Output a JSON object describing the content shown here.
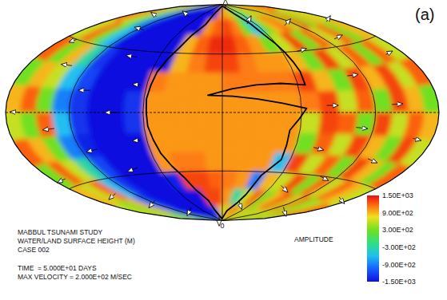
{
  "chart_data": {
    "type": "map",
    "panel_label": "(a)",
    "title": "MABBUL TSUNAMI STUDY",
    "subtitle": "WATER/LAND SURFACE HEIGHT (M)",
    "annotations": [
      "CASE 002",
      "TIME  = 5.000E+01 DAYS",
      "MAX VELOCITY = 2.000E+02 M/SEC"
    ],
    "vector_label": "AMPLITUDE",
    "xticks": [
      0
    ],
    "meridians": [
      -120,
      -60,
      0,
      60,
      120
    ],
    "parallels": [
      -45,
      0,
      45
    ],
    "lon": [
      -172.5,
      -157.5,
      -142.5,
      -127.5,
      -112.5,
      -97.5,
      -82.5,
      -67.5,
      -52.5,
      -37.5,
      -22.5,
      -7.5,
      7.5,
      22.5,
      37.5,
      52.5,
      67.5,
      82.5,
      97.5,
      112.5,
      127.5,
      142.5,
      157.5,
      172.5
    ],
    "lat": [
      82.5,
      67.5,
      52.5,
      37.5,
      22.5,
      7.5,
      -7.5,
      -22.5,
      -37.5,
      -52.5,
      -67.5,
      -82.5
    ],
    "cells": [
      [
        900,
        600,
        200,
        -1200,
        -1500,
        -1500,
        -1500,
        -1500,
        -1500,
        -1500,
        -1400,
        1000,
        1000,
        900,
        300,
        -300,
        200,
        600,
        900,
        300,
        600,
        1200,
        900,
        1200
      ],
      [
        1200,
        600,
        0,
        -900,
        -1500,
        -1500,
        -1500,
        -1500,
        -1500,
        -1500,
        1000,
        1200,
        1300,
        1100,
        300,
        -600,
        300,
        900,
        1200,
        600,
        1300,
        300,
        900,
        600
      ],
      [
        600,
        1200,
        300,
        -600,
        -1500,
        -1500,
        -1500,
        -1500,
        -1500,
        900,
        1200,
        1400,
        1400,
        1200,
        1000,
        300,
        600,
        1300,
        300,
        1200,
        600,
        1200,
        300,
        900
      ],
      [
        1200,
        300,
        900,
        -300,
        -1300,
        -1500,
        -1500,
        -1500,
        -1500,
        900,
        1100,
        1300,
        1300,
        1100,
        1000,
        1000,
        900,
        300,
        1300,
        600,
        1200,
        300,
        1200,
        600
      ],
      [
        300,
        900,
        600,
        -600,
        -1200,
        -1500,
        -1500,
        -1500,
        1100,
        1000,
        1000,
        1000,
        1100,
        1100,
        1100,
        1100,
        1300,
        900,
        300,
        1300,
        900,
        1300,
        600,
        1200
      ],
      [
        900,
        1200,
        300,
        -900,
        -1300,
        -1500,
        -1500,
        -1300,
        1000,
        1000,
        1000,
        1000,
        1000,
        1000,
        1000,
        1000,
        1100,
        1300,
        600,
        1200,
        300,
        1300,
        900,
        300
      ],
      [
        600,
        300,
        1200,
        -600,
        -1300,
        -1500,
        -1500,
        -1300,
        1000,
        1000,
        1000,
        1000,
        1000,
        1000,
        1000,
        1000,
        600,
        1300,
        1200,
        300,
        1300,
        600,
        1200,
        900
      ],
      [
        1200,
        900,
        300,
        -900,
        -1400,
        -1500,
        -1500,
        -1500,
        1000,
        1000,
        1000,
        1000,
        1000,
        1000,
        1000,
        1000,
        300,
        1200,
        600,
        1300,
        900,
        300,
        1300,
        600
      ],
      [
        300,
        1200,
        600,
        -300,
        -1200,
        -1500,
        -1500,
        -1500,
        1000,
        1100,
        1100,
        1000,
        1000,
        1000,
        1000,
        -600,
        1300,
        600,
        1200,
        300,
        1300,
        900,
        300,
        1200
      ],
      [
        900,
        600,
        1200,
        -600,
        -1300,
        -1500,
        -1500,
        -1500,
        -1400,
        1300,
        1300,
        1200,
        1100,
        1000,
        -900,
        900,
        600,
        1300,
        300,
        1200,
        600,
        1200,
        900,
        600
      ],
      [
        600,
        300,
        900,
        -900,
        -1400,
        -1500,
        -1500,
        -1500,
        -1500,
        -1500,
        1300,
        1300,
        1000,
        -300,
        600,
        1200,
        300,
        900,
        1300,
        600,
        1200,
        300,
        600,
        1200
      ],
      [
        300,
        600,
        300,
        -1200,
        -1500,
        -1500,
        -1500,
        -1500,
        -1500,
        -1500,
        -1200,
        900,
        600,
        900,
        1200,
        600,
        900,
        300,
        600,
        900,
        300,
        600,
        900,
        300
      ]
    ],
    "colorbar": {
      "range": [
        -1500,
        1500
      ],
      "ticks": [
        {
          "value": 1500,
          "label": "1.50E+03"
        },
        {
          "value": 900,
          "label": "9.00E+02"
        },
        {
          "value": 300,
          "label": "3.00E+02"
        },
        {
          "value": -300,
          "label": "-3.00E+02"
        },
        {
          "value": -900,
          "label": "-9.00E+02"
        },
        {
          "value": -1500,
          "label": "-1.50E+03"
        }
      ]
    },
    "coastline": {
      "lon": [
        10,
        40,
        55,
        66,
        66,
        -11,
        64,
        52,
        52,
        40,
        15,
        -5,
        -25,
        -40,
        -52,
        -57,
        -58,
        -55,
        -45,
        -30,
        -5,
        10
      ],
      "lat": [
        88,
        80,
        60,
        30,
        20,
        13,
        3,
        -13,
        -35,
        -48,
        -80,
        -88,
        -70,
        -50,
        -30,
        -10,
        10,
        30,
        50,
        70,
        88,
        88
      ]
    },
    "vectors": {
      "lon": [
        -165,
        -165,
        -165,
        -140,
        -135,
        -135,
        -140,
        -110,
        -105,
        -105,
        -110,
        -80,
        -80,
        -80,
        -80,
        -75,
        -65,
        -65,
        75,
        80,
        75,
        70,
        100,
        105,
        105,
        100,
        130,
        135,
        130,
        125,
        160,
        160,
        165,
        160,
        20,
        -20,
        45,
        30
      ],
      "lat": [
        45,
        0,
        -40,
        70,
        30,
        -10,
        -55,
        60,
        15,
        -25,
        -65,
        75,
        40,
        0,
        -40,
        -75,
        20,
        -20,
        45,
        5,
        -25,
        -55,
        65,
        25,
        -10,
        -45,
        50,
        5,
        -30,
        -70,
        35,
        -15,
        60,
        -55,
        85,
        -85,
        70,
        -70
      ],
      "u": [
        -120,
        -150,
        -120,
        -80,
        -160,
        -170,
        -100,
        -140,
        -180,
        -160,
        -90,
        -100,
        -170,
        -190,
        -150,
        -60,
        -120,
        -120,
        140,
        170,
        150,
        100,
        90,
        160,
        170,
        130,
        120,
        160,
        140,
        40,
        100,
        120,
        60,
        80,
        0,
        0,
        60,
        40
      ],
      "v": [
        -40,
        10,
        -60,
        60,
        20,
        -20,
        -90,
        40,
        0,
        -40,
        -110,
        90,
        30,
        0,
        -60,
        -120,
        10,
        -10,
        40,
        0,
        -40,
        -100,
        100,
        20,
        -20,
        -70,
        60,
        10,
        -60,
        -140,
        50,
        -30,
        90,
        -100,
        150,
        -150,
        120,
        -130
      ]
    }
  }
}
